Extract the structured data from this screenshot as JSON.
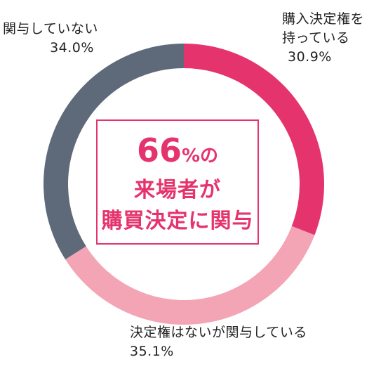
{
  "chart_data": {
    "type": "pie",
    "donut": true,
    "slices": [
      {
        "label": "購入決定権を持っている",
        "value": 30.9,
        "display": "30.9%",
        "color": "#e5336d"
      },
      {
        "label": "決定権はないが関与している",
        "value": 35.1,
        "display": "35.1%",
        "color": "#f3a5b5"
      },
      {
        "label": "関与していない",
        "value": 34.0,
        "display": "34.0%",
        "color": "#5e6a7a"
      }
    ]
  },
  "labels": {
    "decision_line1": "購入決定権を",
    "decision_line2": "持っている",
    "decision_pct": "30.9%",
    "none_name": "関与していない",
    "none_pct": "34.0%",
    "involved_name": "決定権はないが関与している",
    "involved_pct": "35.1%"
  },
  "center": {
    "big_number": "66",
    "big_suffix": "%の",
    "line2": "来場者が",
    "line3": "購買決定に関与",
    "color": "#e5336d"
  }
}
